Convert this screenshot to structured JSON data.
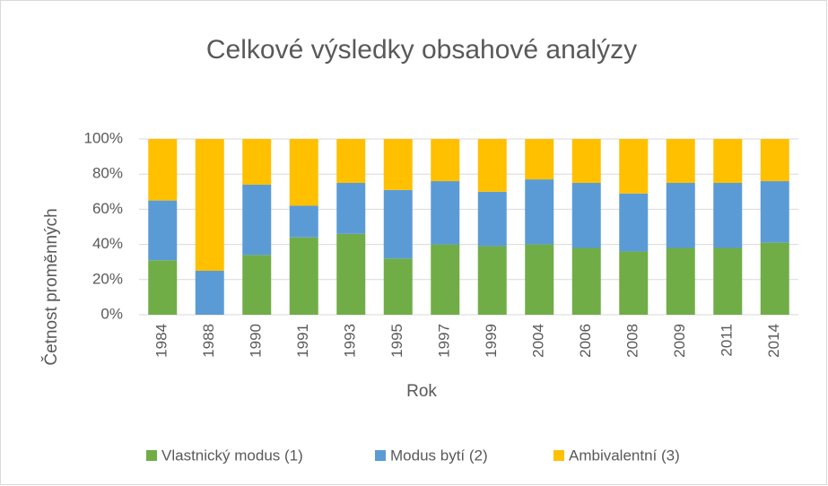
{
  "chart_data": {
    "type": "stacked_bar",
    "title": "Celkové výsledky obsahové analýzy",
    "xlabel": "Rok",
    "ylabel": "Četnost proměnných",
    "categories": [
      "1984",
      "1988",
      "1990",
      "1991",
      "1993",
      "1995",
      "1997",
      "1999",
      "2004",
      "2006",
      "2008",
      "2009",
      "2011",
      "2014"
    ],
    "series": [
      {
        "name": "Vlastnický modus (1)",
        "color": "#70ad47",
        "values": [
          31,
          0,
          34,
          44,
          46,
          32,
          40,
          39,
          40,
          38,
          36,
          38,
          38,
          41
        ]
      },
      {
        "name": "Modus bytí (2)",
        "color": "#5b9bd5",
        "values": [
          34,
          25,
          40,
          18,
          29,
          39,
          36,
          31,
          37,
          37,
          33,
          37,
          37,
          35
        ]
      },
      {
        "name": "Ambivalentní (3)",
        "color": "#ffc000",
        "values": [
          35,
          75,
          26,
          38,
          25,
          29,
          24,
          30,
          23,
          25,
          31,
          25,
          25,
          24
        ]
      }
    ],
    "ylim": [
      0,
      100
    ],
    "yticks": [
      {
        "value": 0,
        "label": "0%"
      },
      {
        "value": 20,
        "label": "20%"
      },
      {
        "value": 40,
        "label": "40%"
      },
      {
        "value": 60,
        "label": "60%"
      },
      {
        "value": 80,
        "label": "80%"
      },
      {
        "value": 100,
        "label": "100%"
      }
    ],
    "grid": true,
    "legend": "bottom"
  }
}
